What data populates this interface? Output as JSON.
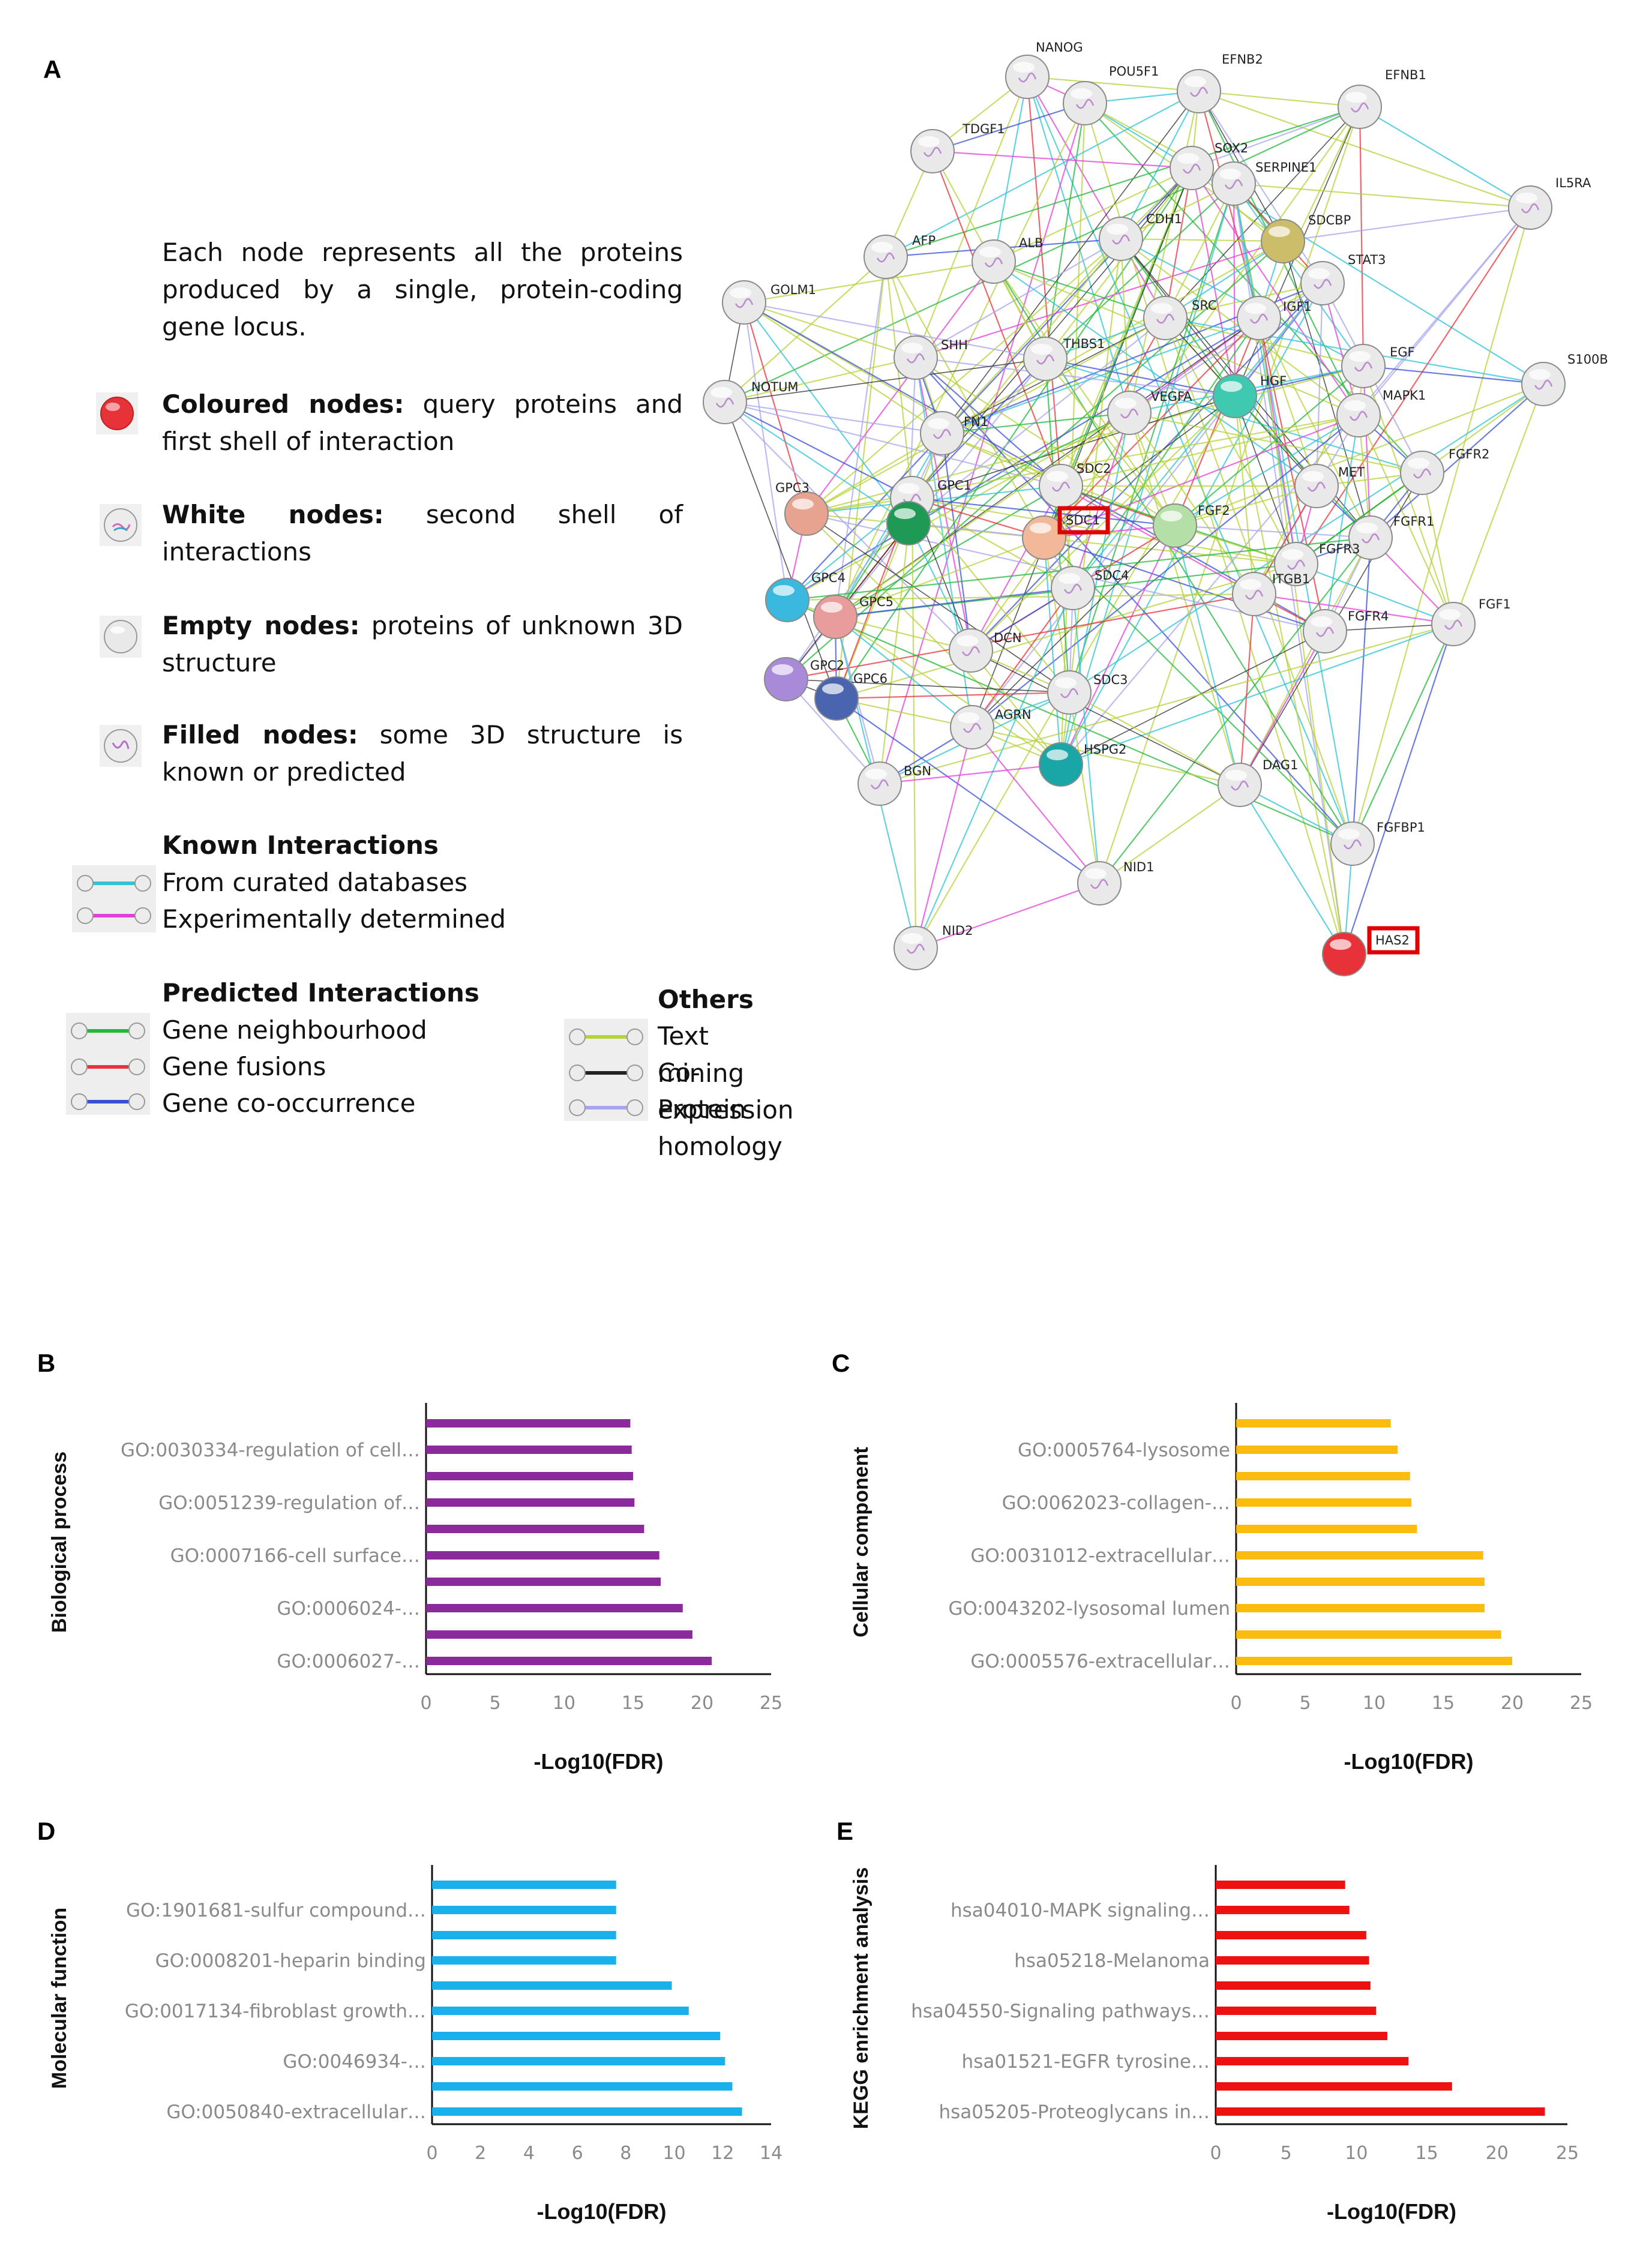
{
  "panels": {
    "a": "A",
    "b": "B",
    "c": "C",
    "d": "D",
    "e": "E"
  },
  "legend": {
    "intro": "Each node represents all the proteins produced by a single, protein-coding gene locus.",
    "coloured_bold": "Coloured nodes:",
    "coloured_text": "query proteins and first shell of interaction",
    "white_bold": "White nodes:",
    "white_text": "second shell of interactions",
    "empty_bold": "Empty nodes:",
    "empty_text": "proteins of unknown 3D structure",
    "filled_bold": "Filled nodes:",
    "filled_text": "some 3D structure is known or predicted",
    "known_title": "Known Interactions",
    "curated": "From curated databases",
    "experimental": "Experimentally determined",
    "predicted_title": "Predicted Interactions",
    "neighbourhood": "Gene neighbourhood",
    "fusions": "Gene fusions",
    "cooccurrence": "Gene co-occurrence",
    "others_title": "Others",
    "textmining": "Text mining",
    "coexpression": "Co-expression",
    "homology": "Protein homology",
    "colors": {
      "curated": "#2ec4d6",
      "experimental": "#e23fd9",
      "neighbourhood": "#22b83a",
      "fusions": "#e8333a",
      "cooccurrence": "#3a4fd6",
      "textmining": "#b6d23a",
      "coexpression": "#222222",
      "homology": "#a6a6f0",
      "node_red": "#e8323a"
    }
  },
  "network": {
    "nodes": [
      {
        "id": "NANOG",
        "label": "NANOG",
        "color": "#e9e9e9"
      },
      {
        "id": "POU5F1",
        "label": "POU5F1",
        "color": "#e9e9e9"
      },
      {
        "id": "EFNB2",
        "label": "EFNB2",
        "color": "#e9e9e9"
      },
      {
        "id": "EFNB1",
        "label": "EFNB1",
        "color": "#e9e9e9"
      },
      {
        "id": "TDGF1",
        "label": "TDGF1",
        "color": "#e9e9e9"
      },
      {
        "id": "SOX2",
        "label": "SOX2",
        "color": "#e9e9e9"
      },
      {
        "id": "SERPINE1",
        "label": "SERPINE1",
        "color": "#e9e9e9"
      },
      {
        "id": "IL5RA",
        "label": "IL5RA",
        "color": "#e9e9e9"
      },
      {
        "id": "SDCBP",
        "label": "SDCBP",
        "color": "#cbbd6a"
      },
      {
        "id": "CDH1",
        "label": "CDH1",
        "color": "#e9e9e9"
      },
      {
        "id": "AFP",
        "label": "AFP",
        "color": "#e9e9e9"
      },
      {
        "id": "ALB",
        "label": "ALB",
        "color": "#e9e9e9"
      },
      {
        "id": "STAT3",
        "label": "STAT3",
        "color": "#e9e9e9"
      },
      {
        "id": "GOLM1",
        "label": "GOLM1",
        "color": "#e9e9e9"
      },
      {
        "id": "SRC",
        "label": "SRC",
        "color": "#e9e9e9"
      },
      {
        "id": "IGF1",
        "label": "IGF1",
        "color": "#e9e9e9"
      },
      {
        "id": "SHH",
        "label": "SHH",
        "color": "#e9e9e9"
      },
      {
        "id": "THBS1",
        "label": "THBS1",
        "color": "#e9e9e9"
      },
      {
        "id": "EGF",
        "label": "EGF",
        "color": "#e9e9e9"
      },
      {
        "id": "S100B",
        "label": "S100B",
        "color": "#e9e9e9"
      },
      {
        "id": "NOTUM",
        "label": "NOTUM",
        "color": "#e9e9e9"
      },
      {
        "id": "HGF",
        "label": "HGF",
        "color": "#3ec9b0"
      },
      {
        "id": "VEGFA",
        "label": "VEGFA",
        "color": "#e9e9e9"
      },
      {
        "id": "MAPK1",
        "label": "MAPK1",
        "color": "#e9e9e9"
      },
      {
        "id": "FN1",
        "label": "FN1",
        "color": "#e9e9e9"
      },
      {
        "id": "FGFR2",
        "label": "FGFR2",
        "color": "#e9e9e9"
      },
      {
        "id": "SDC2",
        "label": "SDC2",
        "color": "#e9e9e9"
      },
      {
        "id": "MET",
        "label": "MET",
        "color": "#e9e9e9"
      },
      {
        "id": "GPC3",
        "label": "GPC3",
        "color": "#e8a390"
      },
      {
        "id": "GPC1",
        "label": "GPC1",
        "color": "#e9e9e9"
      },
      {
        "id": "GPC_GREEN",
        "label": "",
        "color": "#1e9a55"
      },
      {
        "id": "SDC1",
        "label": "SDC1",
        "color": "#f2b89a"
      },
      {
        "id": "FGF2",
        "label": "FGF2",
        "color": "#b4e0a8"
      },
      {
        "id": "FGFR1",
        "label": "FGFR1",
        "color": "#e9e9e9"
      },
      {
        "id": "FGFR3",
        "label": "FGFR3",
        "color": "#e9e9e9"
      },
      {
        "id": "SDC4",
        "label": "SDC4",
        "color": "#e9e9e9"
      },
      {
        "id": "ITGB1",
        "label": "ITGB1",
        "color": "#e9e9e9"
      },
      {
        "id": "GPC4",
        "label": "GPC4",
        "color": "#3bb8dd"
      },
      {
        "id": "GPC5",
        "label": "GPC5",
        "color": "#e89c9c"
      },
      {
        "id": "FGFR4",
        "label": "FGFR4",
        "color": "#e9e9e9"
      },
      {
        "id": "FGF1",
        "label": "FGF1",
        "color": "#e9e9e9"
      },
      {
        "id": "DCN",
        "label": "DCN",
        "color": "#e9e9e9"
      },
      {
        "id": "GPC2",
        "label": "GPC2",
        "color": "#a98ad8"
      },
      {
        "id": "GPC6",
        "label": "GPC6",
        "color": "#4a64b0"
      },
      {
        "id": "SDC3",
        "label": "SDC3",
        "color": "#e9e9e9"
      },
      {
        "id": "AGRN",
        "label": "AGRN",
        "color": "#e9e9e9"
      },
      {
        "id": "HSPG2",
        "label": "HSPG2",
        "color": "#1aa6a6"
      },
      {
        "id": "BGN",
        "label": "BGN",
        "color": "#e9e9e9"
      },
      {
        "id": "DAG1",
        "label": "DAG1",
        "color": "#e9e9e9"
      },
      {
        "id": "FGFBP1",
        "label": "FGFBP1",
        "color": "#e9e9e9"
      },
      {
        "id": "NID1",
        "label": "NID1",
        "color": "#e9e9e9"
      },
      {
        "id": "NID2",
        "label": "NID2",
        "color": "#e9e9e9"
      },
      {
        "id": "HAS2",
        "label": "HAS2",
        "color": "#e8323a"
      }
    ],
    "highlighted": [
      "SDC1",
      "HAS2"
    ]
  },
  "chart_data": [
    {
      "panel": "B",
      "type": "bar",
      "orientation": "horizontal",
      "ylabel": "Biological process",
      "xlabel": "-Log10(FDR)",
      "xlim": [
        0,
        25
      ],
      "xticks": [
        0,
        5,
        10,
        15,
        20,
        25
      ],
      "bar_color": "#8b2a9b",
      "category_labels": [
        "GO:0030334-regulation of cell…",
        "GO:0051239-regulation of…",
        "GO:0007166-cell surface…",
        "GO:0006024-…",
        "GO:0006027-…"
      ],
      "values": [
        14.8,
        14.9,
        15.0,
        15.1,
        15.8,
        16.9,
        17.0,
        18.6,
        19.3,
        20.7
      ]
    },
    {
      "panel": "C",
      "type": "bar",
      "orientation": "horizontal",
      "ylabel": "Cellular component",
      "xlabel": "-Log10(FDR)",
      "xlim": [
        0,
        25
      ],
      "xticks": [
        0,
        5,
        10,
        15,
        20,
        25
      ],
      "bar_color": "#fcbc0f",
      "category_labels": [
        "GO:0005764-lysosome",
        "GO:0062023-collagen-…",
        "GO:0031012-extracellular…",
        "GO:0043202-lysosomal lumen",
        "GO:0005576-extracellular…"
      ],
      "values": [
        11.2,
        11.7,
        12.6,
        12.7,
        13.1,
        17.9,
        18.0,
        18.0,
        19.2,
        20.0
      ]
    },
    {
      "panel": "D",
      "type": "bar",
      "orientation": "horizontal",
      "ylabel": "Molecular function",
      "xlabel": "-Log10(FDR)",
      "xlim": [
        0,
        14
      ],
      "xticks": [
        0,
        2,
        4,
        6,
        8,
        10,
        12,
        14
      ],
      "bar_color": "#1ab0ec",
      "category_labels": [
        "GO:1901681-sulfur compound…",
        "GO:0008201-heparin binding",
        "GO:0017134-fibroblast growth…",
        "GO:0046934-…",
        "GO:0050840-extracellular…"
      ],
      "values": [
        7.6,
        7.6,
        7.6,
        7.6,
        9.9,
        10.6,
        11.9,
        12.1,
        12.4,
        12.8
      ]
    },
    {
      "panel": "E",
      "type": "bar",
      "orientation": "horizontal",
      "ylabel": "KEGG enrichment analysis",
      "xlabel": "-Log10(FDR)",
      "xlim": [
        0,
        25
      ],
      "xticks": [
        0,
        5,
        10,
        15,
        20,
        25
      ],
      "bar_color": "#ee1111",
      "category_labels": [
        "hsa04010-MAPK signaling…",
        "hsa05218-Melanoma",
        "hsa04550-Signaling pathways…",
        "hsa01521-EGFR tyrosine…",
        "hsa05205-Proteoglycans in…"
      ],
      "values": [
        9.2,
        9.5,
        10.7,
        10.9,
        11.0,
        11.4,
        12.2,
        13.7,
        16.8,
        23.4
      ]
    }
  ]
}
